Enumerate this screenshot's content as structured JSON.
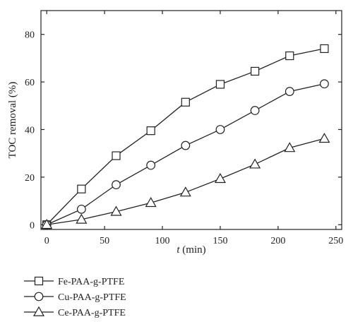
{
  "chart_data": {
    "type": "line",
    "xlabel_italic": "t",
    "xlabel_rest": " (min)",
    "ylabel": "TOC removal (%)",
    "xlim": [
      -5,
      255
    ],
    "ylim": [
      -2,
      90
    ],
    "xticks": [
      0,
      50,
      100,
      150,
      200,
      250
    ],
    "yticks": [
      0,
      20,
      40,
      60,
      80
    ],
    "grid": false,
    "legend_position": "bottom-left",
    "x": [
      0,
      30,
      60,
      90,
      120,
      150,
      180,
      210,
      240
    ],
    "series": [
      {
        "name": "Fe-PAA-g-PTFE",
        "marker": "square",
        "values": [
          0,
          15.0,
          29.0,
          39.5,
          51.5,
          59.0,
          64.5,
          71.0,
          74.0
        ]
      },
      {
        "name": "Cu-PAA-g-PTFE",
        "marker": "circle",
        "values": [
          0,
          6.5,
          16.8,
          25.0,
          33.3,
          40.0,
          48.0,
          56.0,
          59.2
        ]
      },
      {
        "name": "Ce-PAA-g-PTFE",
        "marker": "triangle",
        "values": [
          0,
          2.2,
          5.5,
          9.2,
          13.6,
          19.3,
          25.4,
          32.3,
          36.2
        ]
      }
    ]
  }
}
